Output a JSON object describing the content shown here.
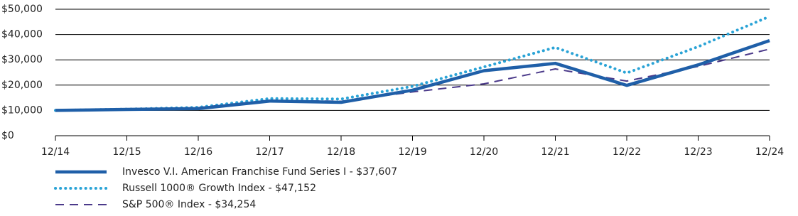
{
  "chart_data": {
    "type": "line",
    "categories": [
      "12/14",
      "12/15",
      "12/16",
      "12/17",
      "12/18",
      "12/19",
      "12/20",
      "12/21",
      "12/22",
      "12/23",
      "12/24"
    ],
    "series": [
      {
        "name": "Invesco V.I. American Franchise Fund Series I - $37,607",
        "color": "#1f5fa8",
        "style": "solid",
        "values": [
          10000,
          10400,
          10700,
          13700,
          13200,
          18000,
          25700,
          28600,
          19900,
          28000,
          37607
        ]
      },
      {
        "name": "Russell 1000® Growth Index - $47,152",
        "color": "#2aa3d6",
        "style": "dotted",
        "values": [
          10000,
          10500,
          11200,
          14700,
          14500,
          19500,
          27200,
          34900,
          24800,
          35200,
          47152
        ]
      },
      {
        "name": "S&P 500® Index - $34,254",
        "color": "#4b3a8a",
        "style": "dashed",
        "values": [
          10000,
          10300,
          11100,
          14000,
          13600,
          17300,
          20500,
          26400,
          21600,
          27400,
          34254
        ]
      }
    ],
    "ylim": [
      0,
      50000
    ],
    "yticks": [
      {
        "value": 0,
        "label": "$0"
      },
      {
        "value": 10000,
        "label": "$10,000"
      },
      {
        "value": 20000,
        "label": "$20,000"
      },
      {
        "value": 30000,
        "label": "$30,000"
      },
      {
        "value": 40000,
        "label": "$40,000"
      },
      {
        "value": 50000,
        "label": "$50,000"
      }
    ],
    "grid": true
  }
}
